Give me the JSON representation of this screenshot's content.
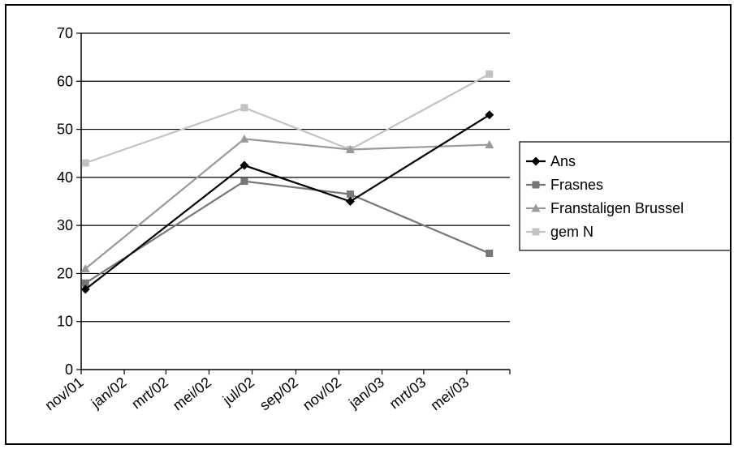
{
  "chart_data": {
    "type": "line",
    "title": "",
    "xlabel": "",
    "ylabel": "",
    "ylim": [
      0,
      70
    ],
    "yticks": [
      "0",
      "10",
      "20",
      "30",
      "40",
      "50",
      "60",
      "70"
    ],
    "x_tick_labels": [
      "nov/01",
      "jan/02",
      "mrt/02",
      "mei/02",
      "jul/02",
      "sep/02",
      "nov/02",
      "jan/03",
      "mrt/03",
      "mei/03"
    ],
    "x": [
      "2001-11-07",
      "2002-06-20",
      "2002-11-17",
      "2003-06-02"
    ],
    "grid": true,
    "legend_position": "right",
    "series": [
      {
        "name": "Ans",
        "color": "#000000",
        "marker": "diamond",
        "values": [
          16.7,
          42.5,
          35.0,
          53.0
        ]
      },
      {
        "name": "Frasnes",
        "color": "#777777",
        "marker": "square",
        "values": [
          18.0,
          39.2,
          36.5,
          24.2
        ]
      },
      {
        "name": "Franstaligen Brussel",
        "color": "#999999",
        "marker": "triangle",
        "values": [
          21.0,
          48.0,
          45.8,
          46.8
        ]
      },
      {
        "name": "gem N",
        "color": "#c2c2c2",
        "marker": "square",
        "values": [
          43.0,
          54.5,
          45.8,
          61.5
        ]
      }
    ]
  }
}
